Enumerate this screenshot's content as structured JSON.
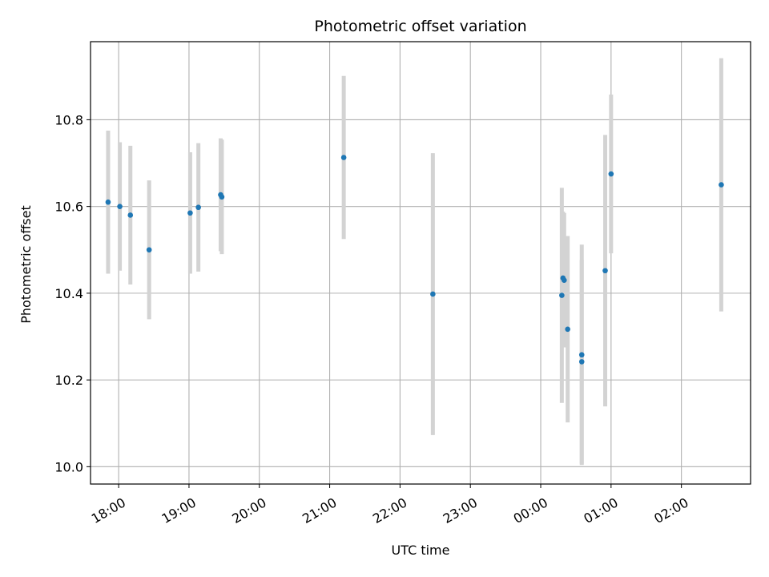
{
  "chart_data": {
    "type": "scatter",
    "title": "Photometric offset variation",
    "xlabel": "UTC time",
    "ylabel": "Photometric offset",
    "grid": true,
    "x_axis_type": "time",
    "xlim": [
      "2000-01-01 17:36",
      "2000-01-02 02:59"
    ],
    "ylim": [
      9.96,
      10.98
    ],
    "x_ticks": [
      {
        "t": "2000-01-01 18:00",
        "label": "18:00"
      },
      {
        "t": "2000-01-01 19:00",
        "label": "19:00"
      },
      {
        "t": "2000-01-01 20:00",
        "label": "20:00"
      },
      {
        "t": "2000-01-01 21:00",
        "label": "21:00"
      },
      {
        "t": "2000-01-01 22:00",
        "label": "22:00"
      },
      {
        "t": "2000-01-01 23:00",
        "label": "23:00"
      },
      {
        "t": "2000-01-02 00:00",
        "label": "00:00"
      },
      {
        "t": "2000-01-02 01:00",
        "label": "01:00"
      },
      {
        "t": "2000-01-02 02:00",
        "label": "02:00"
      }
    ],
    "y_ticks": [
      {
        "v": 10.0,
        "label": "10.0"
      },
      {
        "v": 10.2,
        "label": "10.2"
      },
      {
        "v": 10.4,
        "label": "10.4"
      },
      {
        "v": 10.6,
        "label": "10.6"
      },
      {
        "v": 10.8,
        "label": "10.8"
      }
    ],
    "marker_color": "#1f77b4",
    "errorbar_color": "#d3d3d3",
    "points": [
      {
        "t": "2000-01-01 17:51",
        "y": 10.61,
        "err": 0.165
      },
      {
        "t": "2000-01-01 18:01",
        "y": 10.6,
        "err": 0.148
      },
      {
        "t": "2000-01-01 18:10",
        "y": 10.58,
        "err": 0.16
      },
      {
        "t": "2000-01-01 18:26",
        "y": 10.5,
        "err": 0.16
      },
      {
        "t": "2000-01-01 19:01",
        "y": 10.585,
        "err": 0.14
      },
      {
        "t": "2000-01-01 19:08",
        "y": 10.598,
        "err": 0.148
      },
      {
        "t": "2000-01-01 19:27",
        "y": 10.627,
        "err": 0.13
      },
      {
        "t": "2000-01-01 19:28",
        "y": 10.622,
        "err": 0.132
      },
      {
        "t": "2000-01-01 21:12",
        "y": 10.713,
        "err": 0.188
      },
      {
        "t": "2000-01-01 22:28",
        "y": 10.398,
        "err": 0.325
      },
      {
        "t": "2000-01-02 00:18",
        "y": 10.395,
        "err": 0.248
      },
      {
        "t": "2000-01-02 00:19",
        "y": 10.435,
        "err": 0.153
      },
      {
        "t": "2000-01-02 00:20",
        "y": 10.43,
        "err": 0.155
      },
      {
        "t": "2000-01-02 00:23",
        "y": 10.317,
        "err": 0.215
      },
      {
        "t": "2000-01-02 00:35",
        "y": 10.258,
        "err": 0.254
      },
      {
        "t": "2000-01-02 00:35",
        "y": 10.242,
        "err": 0.235
      },
      {
        "t": "2000-01-02 00:55",
        "y": 10.452,
        "err": 0.313
      },
      {
        "t": "2000-01-02 01:00",
        "y": 10.675,
        "err": 0.183
      },
      {
        "t": "2000-01-02 02:34",
        "y": 10.65,
        "err": 0.292
      }
    ]
  }
}
